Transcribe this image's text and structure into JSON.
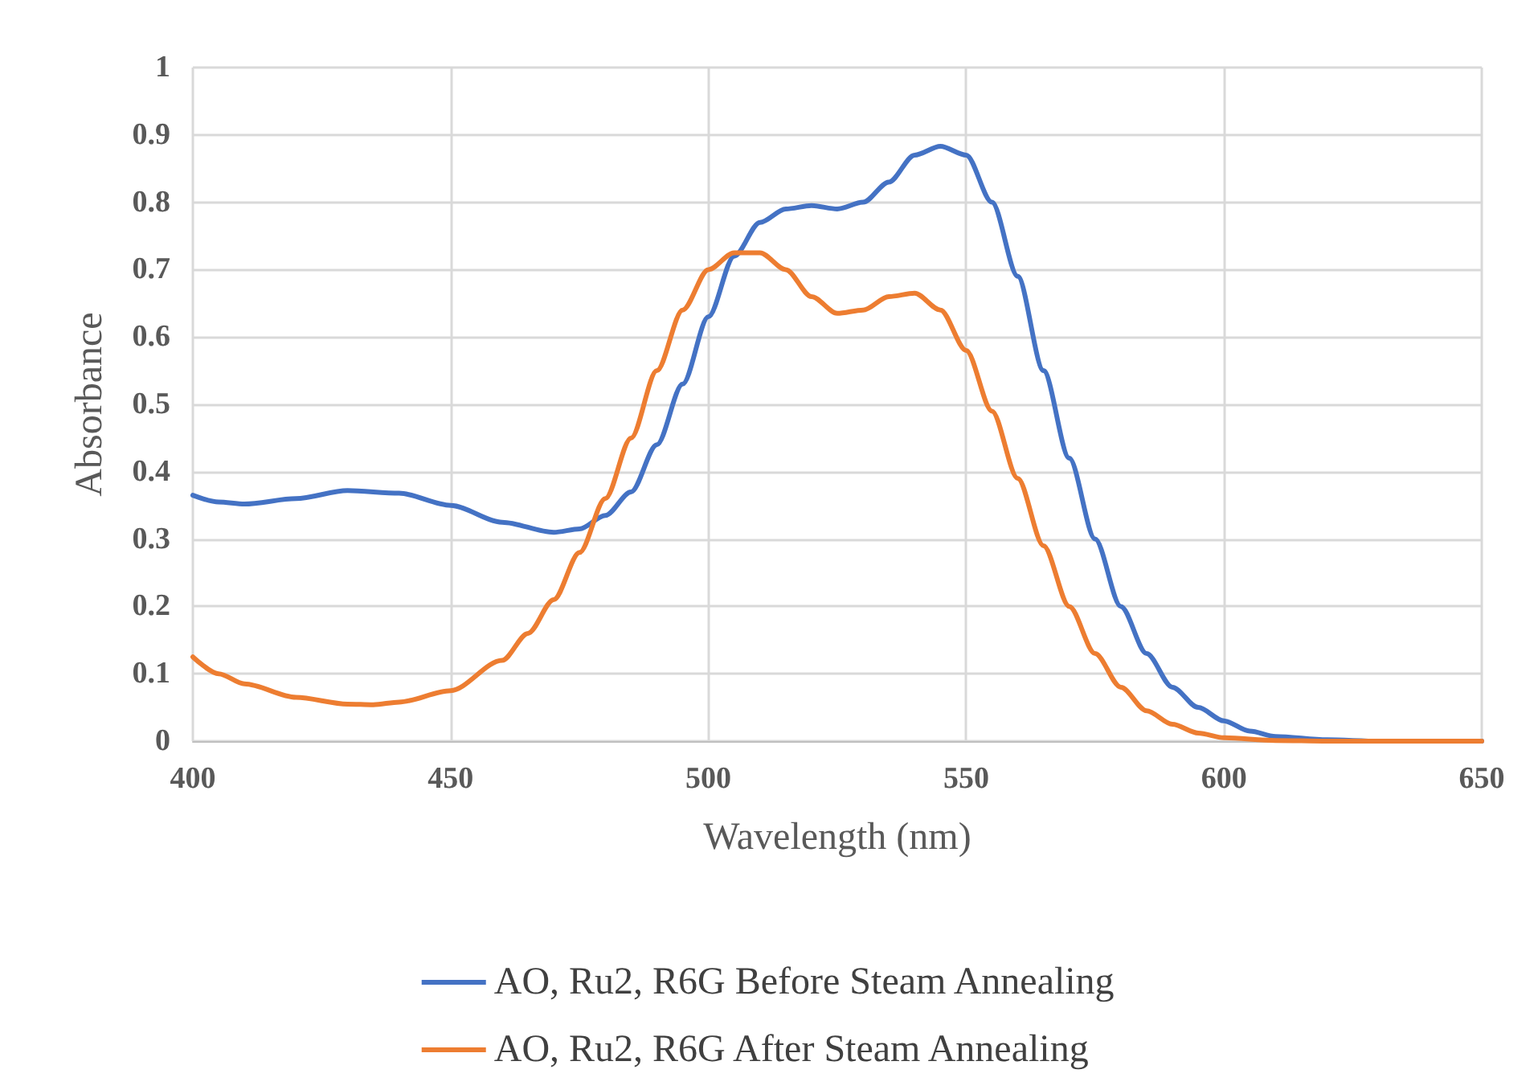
{
  "chart_data": {
    "type": "line",
    "xlabel": "Wavelength (nm)",
    "ylabel": "Absorbance",
    "xlim": [
      400,
      650
    ],
    "xticks": [
      400,
      450,
      500,
      550,
      600,
      650
    ],
    "ylim": [
      0,
      1
    ],
    "yticks": [
      0,
      0.1,
      0.2,
      0.3,
      0.4,
      0.5,
      0.6,
      0.7,
      0.8,
      0.9,
      1
    ],
    "grid": true,
    "legend": "bottom",
    "marker": "none",
    "line_style": "solid",
    "series": [
      {
        "name": "AO, Ru2, R6G Before Steam Annealing",
        "color": "#4472c4",
        "x": [
          400,
          405,
          410,
          420,
          430,
          440,
          450,
          460,
          470,
          475,
          480,
          485,
          490,
          495,
          500,
          505,
          510,
          515,
          520,
          525,
          530,
          535,
          540,
          545,
          550,
          555,
          560,
          565,
          570,
          575,
          580,
          585,
          590,
          595,
          600,
          605,
          610,
          620,
          630,
          650
        ],
        "values": [
          0.365,
          0.355,
          0.352,
          0.36,
          0.372,
          0.368,
          0.35,
          0.325,
          0.31,
          0.315,
          0.335,
          0.37,
          0.44,
          0.53,
          0.63,
          0.72,
          0.77,
          0.79,
          0.795,
          0.79,
          0.8,
          0.83,
          0.87,
          0.883,
          0.87,
          0.8,
          0.69,
          0.55,
          0.42,
          0.3,
          0.2,
          0.13,
          0.08,
          0.05,
          0.03,
          0.015,
          0.007,
          0.002,
          0,
          0
        ]
      },
      {
        "name": "AO, Ru2, R6G After Steam Annealing",
        "color": "#ed7d31",
        "x": [
          400,
          405,
          410,
          420,
          430,
          435,
          440,
          450,
          460,
          465,
          470,
          475,
          480,
          485,
          490,
          495,
          500,
          505,
          510,
          515,
          520,
          525,
          530,
          535,
          540,
          545,
          550,
          555,
          560,
          565,
          570,
          575,
          580,
          585,
          590,
          595,
          600,
          610,
          620,
          650
        ],
        "values": [
          0.125,
          0.1,
          0.085,
          0.065,
          0.055,
          0.054,
          0.058,
          0.075,
          0.12,
          0.16,
          0.21,
          0.28,
          0.36,
          0.45,
          0.55,
          0.64,
          0.7,
          0.725,
          0.725,
          0.7,
          0.66,
          0.635,
          0.64,
          0.66,
          0.665,
          0.64,
          0.58,
          0.49,
          0.39,
          0.29,
          0.2,
          0.13,
          0.08,
          0.045,
          0.025,
          0.012,
          0.005,
          0.001,
          0,
          0
        ]
      }
    ]
  }
}
